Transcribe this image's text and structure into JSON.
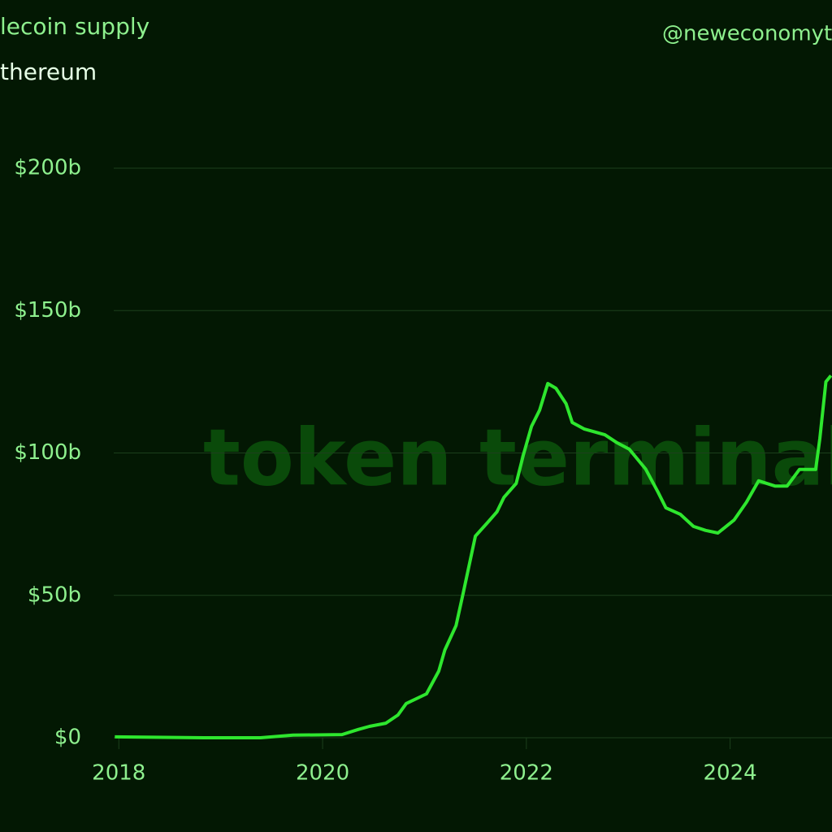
{
  "chart_data": {
    "type": "line",
    "title": "lecoin supply",
    "subtitle": "thereum",
    "handle": "@neweconomyt",
    "watermark": "token terminal_",
    "xlim": [
      2017.95,
      2025.0
    ],
    "xticks": [
      2018,
      2020,
      2022,
      2024
    ],
    "ylim": [
      0,
      200
    ],
    "yticks": [
      {
        "value": 0,
        "label": "$0"
      },
      {
        "value": 50,
        "label": "$50b"
      },
      {
        "value": 100,
        "label": "$100b"
      },
      {
        "value": 150,
        "label": "$150b"
      },
      {
        "value": 200,
        "label": "$200b"
      }
    ],
    "grid": true,
    "series": [
      {
        "color": "#2ee62e",
        "x": [
          2017.96,
          2018.83,
          2019.39,
          2019.71,
          2020.19,
          2020.35,
          2020.46,
          2020.62,
          2020.74,
          2020.82,
          2021.02,
          2021.14,
          2021.2,
          2021.31,
          2021.38,
          2021.5,
          2021.62,
          2021.71,
          2021.78,
          2021.9,
          2021.97,
          2022.05,
          2022.13,
          2022.21,
          2022.29,
          2022.39,
          2022.45,
          2022.57,
          2022.77,
          2022.89,
          2023.01,
          2023.17,
          2023.29,
          2023.37,
          2023.51,
          2023.64,
          2023.76,
          2023.88,
          2024.04,
          2024.16,
          2024.28,
          2024.44,
          2024.56,
          2024.68,
          2024.84,
          2024.88,
          2024.94,
          2024.99
        ],
        "values": [
          0.3,
          0,
          0,
          0.9,
          1.1,
          2.9,
          4,
          5.1,
          8,
          12,
          15.4,
          23.4,
          30.8,
          39.4,
          50.8,
          70.8,
          75.6,
          79.3,
          84.4,
          89.3,
          99.3,
          109.3,
          115,
          124.4,
          122.7,
          117.3,
          110.7,
          108.4,
          106.4,
          103.6,
          101.3,
          94.4,
          86.4,
          80.7,
          78.5,
          74.2,
          72.8,
          71.9,
          76.5,
          82.7,
          90.2,
          88.4,
          88.4,
          94.2,
          94.2,
          105,
          125,
          127.2
        ]
      }
    ]
  }
}
